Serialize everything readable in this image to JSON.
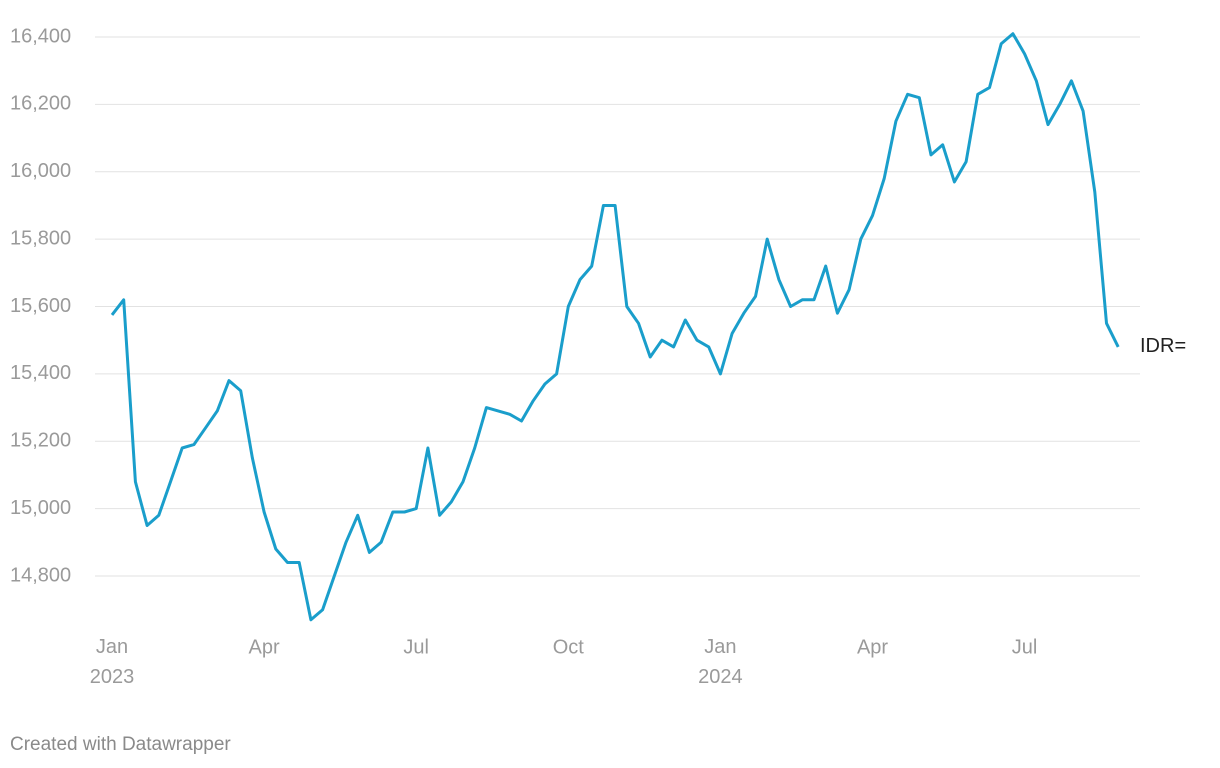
{
  "chart_data": {
    "type": "line",
    "categories": [
      "Jan 2023",
      null,
      null,
      null,
      null,
      null,
      null,
      null,
      null,
      null,
      null,
      null,
      null,
      "Apr",
      null,
      null,
      null,
      null,
      null,
      null,
      null,
      null,
      null,
      null,
      null,
      null,
      "Jul",
      null,
      null,
      null,
      null,
      null,
      null,
      null,
      null,
      null,
      null,
      null,
      null,
      "Oct",
      null,
      null,
      null,
      null,
      null,
      null,
      null,
      null,
      null,
      null,
      null,
      null,
      "Jan 2024",
      null,
      null,
      null,
      null,
      null,
      null,
      null,
      null,
      null,
      null,
      null,
      null,
      "Apr",
      null,
      null,
      null,
      null,
      null,
      null,
      null,
      null,
      null,
      null,
      null,
      null,
      "Jul",
      null,
      null,
      null,
      null,
      null,
      null,
      null,
      null
    ],
    "series": [
      {
        "name": "IDR=",
        "color": "#1a9ecb",
        "values": [
          15575,
          15620,
          15080,
          14950,
          14980,
          15080,
          15180,
          15190,
          15240,
          15290,
          15380,
          15350,
          15150,
          14990,
          14880,
          14840,
          14840,
          14670,
          14700,
          14800,
          14900,
          14980,
          14870,
          14900,
          14990,
          14990,
          15000,
          15180,
          14980,
          15020,
          15080,
          15180,
          15300,
          15290,
          15280,
          15260,
          15320,
          15370,
          15400,
          15600,
          15680,
          15720,
          15900,
          15900,
          15600,
          15550,
          15450,
          15500,
          15480,
          15560,
          15500,
          15480,
          15400,
          15520,
          15580,
          15630,
          15800,
          15680,
          15600,
          15620,
          15620,
          15720,
          15580,
          15650,
          15800,
          15870,
          15980,
          16150,
          16230,
          16220,
          16050,
          16080,
          15970,
          16030,
          16230,
          16250,
          16380,
          16410,
          16350,
          16270,
          16140,
          16200,
          16270,
          16180,
          15940,
          15550,
          15480
        ]
      }
    ],
    "ylim": [
      14650,
      16450
    ],
    "yticks": [
      {
        "value": 14800,
        "label": "14,800"
      },
      {
        "value": 15000,
        "label": "15,000"
      },
      {
        "value": 15200,
        "label": "15,200"
      },
      {
        "value": 15400,
        "label": "15,400"
      },
      {
        "value": 15600,
        "label": "15,600"
      },
      {
        "value": 15800,
        "label": "15,800"
      },
      {
        "value": 16000,
        "label": "16,000"
      },
      {
        "value": 16200,
        "label": "16,200"
      },
      {
        "value": 16400,
        "label": "16,400"
      }
    ],
    "grid": true,
    "credit": "Created with Datawrapper"
  }
}
